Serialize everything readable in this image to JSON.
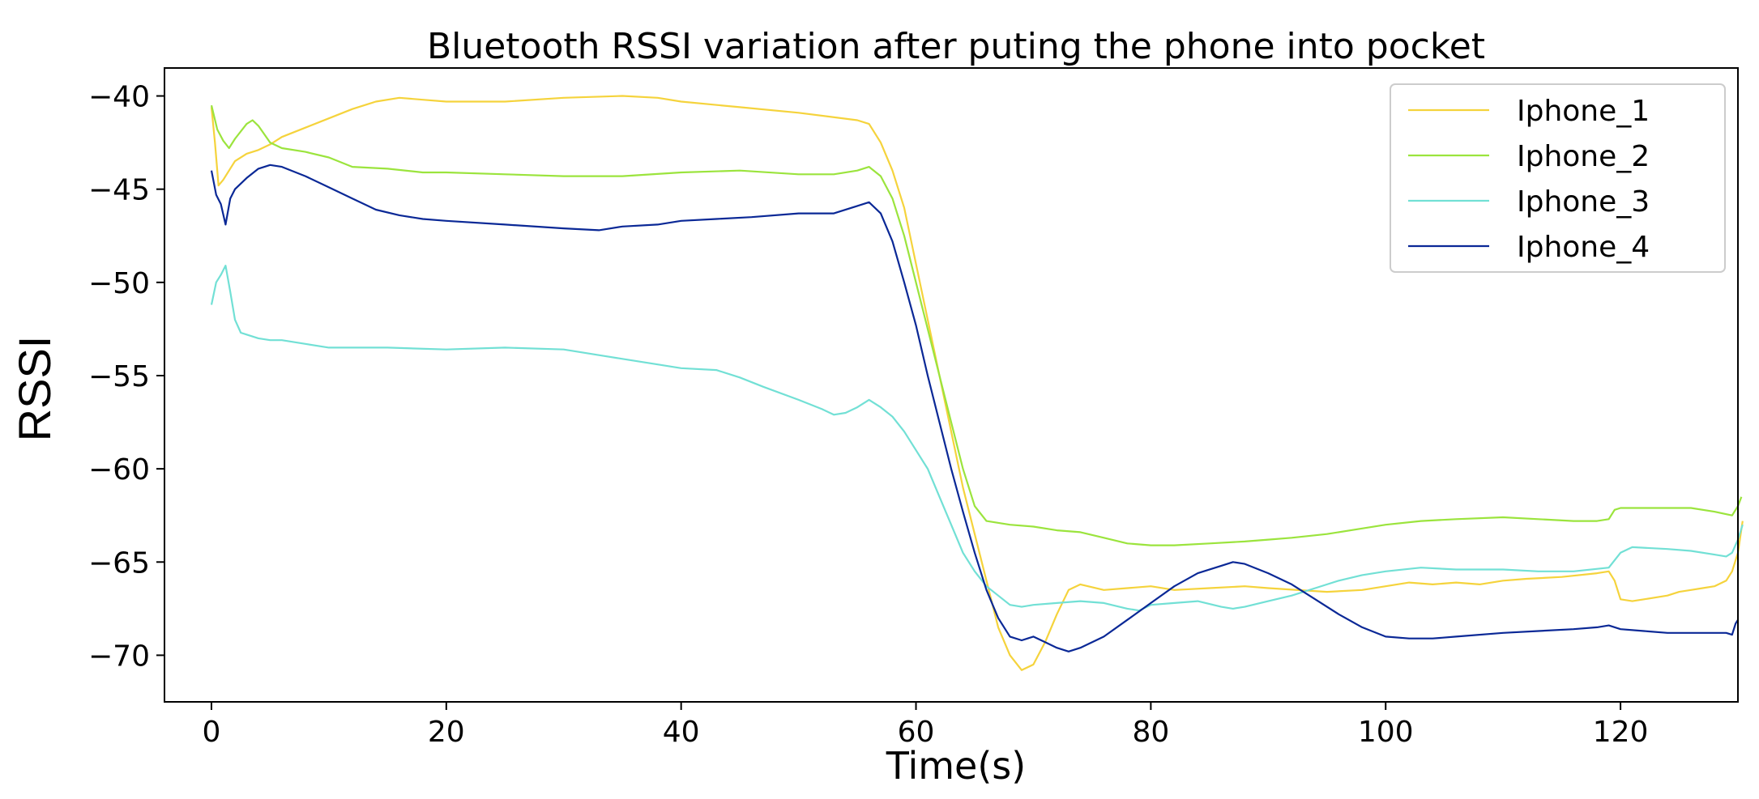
{
  "chart_data": {
    "type": "line",
    "title": "Bluetooth RSSI variation after puting the phone into pocket",
    "xlabel": "Time(s)",
    "ylabel": "RSSI",
    "xlim": [
      -4,
      130
    ],
    "ylim": [
      -72.5,
      -38.5
    ],
    "xticks": [
      0,
      20,
      40,
      60,
      80,
      100,
      120
    ],
    "yticks": [
      -40,
      -45,
      -50,
      -55,
      -60,
      -65,
      -70
    ],
    "xtick_labels": [
      "0",
      "20",
      "40",
      "60",
      "80",
      "100",
      "120"
    ],
    "ytick_labels": [
      "−40",
      "−45",
      "−50",
      "−55",
      "−60",
      "−65",
      "−70"
    ],
    "grid": false,
    "legend_position": "top-right",
    "series": [
      {
        "name": "Iphone_1",
        "color": "#f5d33c",
        "points": [
          [
            0,
            -40.6
          ],
          [
            0.3,
            -42.5
          ],
          [
            0.6,
            -44.8
          ],
          [
            1,
            -44.5
          ],
          [
            1.5,
            -44
          ],
          [
            2,
            -43.5
          ],
          [
            3,
            -43.1
          ],
          [
            4,
            -42.9
          ],
          [
            5,
            -42.6
          ],
          [
            6,
            -42.2
          ],
          [
            8,
            -41.7
          ],
          [
            10,
            -41.2
          ],
          [
            12,
            -40.7
          ],
          [
            14,
            -40.3
          ],
          [
            16,
            -40.1
          ],
          [
            18,
            -40.2
          ],
          [
            20,
            -40.3
          ],
          [
            25,
            -40.3
          ],
          [
            30,
            -40.1
          ],
          [
            35,
            -40
          ],
          [
            38,
            -40.1
          ],
          [
            40,
            -40.3
          ],
          [
            45,
            -40.6
          ],
          [
            50,
            -40.9
          ],
          [
            55,
            -41.3
          ],
          [
            56,
            -41.5
          ],
          [
            57,
            -42.5
          ],
          [
            58,
            -44
          ],
          [
            59,
            -46
          ],
          [
            60,
            -49
          ],
          [
            61,
            -52
          ],
          [
            62,
            -55
          ],
          [
            63,
            -58
          ],
          [
            64,
            -61
          ],
          [
            65,
            -63.5
          ],
          [
            66,
            -66
          ],
          [
            67,
            -68.5
          ],
          [
            68,
            -70
          ],
          [
            69,
            -70.8
          ],
          [
            70,
            -70.5
          ],
          [
            71,
            -69.3
          ],
          [
            72,
            -67.8
          ],
          [
            73,
            -66.5
          ],
          [
            74,
            -66.2
          ],
          [
            76,
            -66.5
          ],
          [
            78,
            -66.4
          ],
          [
            80,
            -66.3
          ],
          [
            82,
            -66.5
          ],
          [
            85,
            -66.4
          ],
          [
            88,
            -66.3
          ],
          [
            90,
            -66.4
          ],
          [
            95,
            -66.6
          ],
          [
            98,
            -66.5
          ],
          [
            100,
            -66.3
          ],
          [
            102,
            -66.1
          ],
          [
            104,
            -66.2
          ],
          [
            106,
            -66.1
          ],
          [
            108,
            -66.2
          ],
          [
            110,
            -66
          ],
          [
            112,
            -65.9
          ],
          [
            115,
            -65.8
          ],
          [
            118,
            -65.6
          ],
          [
            119,
            -65.5
          ],
          [
            119.5,
            -66
          ],
          [
            120,
            -67
          ],
          [
            121,
            -67.1
          ],
          [
            122,
            -67
          ],
          [
            124,
            -66.8
          ],
          [
            125,
            -66.6
          ],
          [
            126,
            -66.5
          ],
          [
            127,
            -66.4
          ],
          [
            128,
            -66.3
          ],
          [
            129,
            -66
          ],
          [
            129.5,
            -65.5
          ],
          [
            130,
            -64.5
          ],
          [
            130.4,
            -62.8
          ]
        ]
      },
      {
        "name": "Iphone_2",
        "color": "#9be43d",
        "points": [
          [
            0,
            -40.5
          ],
          [
            0.5,
            -41.8
          ],
          [
            1,
            -42.4
          ],
          [
            1.5,
            -42.8
          ],
          [
            2,
            -42.3
          ],
          [
            3,
            -41.5
          ],
          [
            3.5,
            -41.3
          ],
          [
            4,
            -41.6
          ],
          [
            5,
            -42.5
          ],
          [
            6,
            -42.8
          ],
          [
            8,
            -43
          ],
          [
            10,
            -43.3
          ],
          [
            12,
            -43.8
          ],
          [
            15,
            -43.9
          ],
          [
            18,
            -44.1
          ],
          [
            20,
            -44.1
          ],
          [
            25,
            -44.2
          ],
          [
            30,
            -44.3
          ],
          [
            35,
            -44.3
          ],
          [
            40,
            -44.1
          ],
          [
            45,
            -44
          ],
          [
            50,
            -44.2
          ],
          [
            53,
            -44.2
          ],
          [
            55,
            -44
          ],
          [
            56,
            -43.8
          ],
          [
            57,
            -44.3
          ],
          [
            58,
            -45.5
          ],
          [
            59,
            -47.5
          ],
          [
            60,
            -50
          ],
          [
            61,
            -52.5
          ],
          [
            62,
            -55
          ],
          [
            63,
            -57.5
          ],
          [
            64,
            -60
          ],
          [
            65,
            -62
          ],
          [
            66,
            -62.8
          ],
          [
            68,
            -63
          ],
          [
            70,
            -63.1
          ],
          [
            72,
            -63.3
          ],
          [
            74,
            -63.4
          ],
          [
            76,
            -63.7
          ],
          [
            78,
            -64
          ],
          [
            80,
            -64.1
          ],
          [
            82,
            -64.1
          ],
          [
            85,
            -64
          ],
          [
            88,
            -63.9
          ],
          [
            90,
            -63.8
          ],
          [
            92,
            -63.7
          ],
          [
            95,
            -63.5
          ],
          [
            98,
            -63.2
          ],
          [
            100,
            -63
          ],
          [
            103,
            -62.8
          ],
          [
            106,
            -62.7
          ],
          [
            110,
            -62.6
          ],
          [
            113,
            -62.7
          ],
          [
            116,
            -62.8
          ],
          [
            118,
            -62.8
          ],
          [
            119,
            -62.7
          ],
          [
            119.5,
            -62.2
          ],
          [
            120,
            -62.1
          ],
          [
            123,
            -62.1
          ],
          [
            126,
            -62.1
          ],
          [
            128,
            -62.3
          ],
          [
            129.5,
            -62.5
          ],
          [
            130,
            -62
          ],
          [
            130.3,
            -61.5
          ]
        ]
      },
      {
        "name": "Iphone_3",
        "color": "#72e0d5",
        "points": [
          [
            0,
            -51.2
          ],
          [
            0.4,
            -50
          ],
          [
            0.8,
            -49.6
          ],
          [
            1.2,
            -49.1
          ],
          [
            1.6,
            -50.5
          ],
          [
            2,
            -52
          ],
          [
            2.5,
            -52.7
          ],
          [
            3,
            -52.8
          ],
          [
            4,
            -53
          ],
          [
            5,
            -53.1
          ],
          [
            6,
            -53.1
          ],
          [
            8,
            -53.3
          ],
          [
            10,
            -53.5
          ],
          [
            12,
            -53.5
          ],
          [
            15,
            -53.5
          ],
          [
            20,
            -53.6
          ],
          [
            25,
            -53.5
          ],
          [
            30,
            -53.6
          ],
          [
            33,
            -53.9
          ],
          [
            35,
            -54.1
          ],
          [
            38,
            -54.4
          ],
          [
            40,
            -54.6
          ],
          [
            43,
            -54.7
          ],
          [
            45,
            -55.1
          ],
          [
            47,
            -55.6
          ],
          [
            50,
            -56.3
          ],
          [
            52,
            -56.8
          ],
          [
            53,
            -57.1
          ],
          [
            54,
            -57
          ],
          [
            55,
            -56.7
          ],
          [
            56,
            -56.3
          ],
          [
            57,
            -56.7
          ],
          [
            58,
            -57.2
          ],
          [
            59,
            -58
          ],
          [
            60,
            -59
          ],
          [
            61,
            -60
          ],
          [
            62,
            -61.5
          ],
          [
            63,
            -63
          ],
          [
            64,
            -64.5
          ],
          [
            65,
            -65.5
          ],
          [
            66,
            -66.3
          ],
          [
            67,
            -66.8
          ],
          [
            68,
            -67.3
          ],
          [
            69,
            -67.4
          ],
          [
            70,
            -67.3
          ],
          [
            72,
            -67.2
          ],
          [
            74,
            -67.1
          ],
          [
            76,
            -67.2
          ],
          [
            78,
            -67.5
          ],
          [
            79,
            -67.6
          ],
          [
            80,
            -67.3
          ],
          [
            82,
            -67.2
          ],
          [
            84,
            -67.1
          ],
          [
            86,
            -67.4
          ],
          [
            87,
            -67.5
          ],
          [
            88,
            -67.4
          ],
          [
            90,
            -67.1
          ],
          [
            92,
            -66.8
          ],
          [
            94,
            -66.4
          ],
          [
            96,
            -66
          ],
          [
            98,
            -65.7
          ],
          [
            100,
            -65.5
          ],
          [
            103,
            -65.3
          ],
          [
            106,
            -65.4
          ],
          [
            110,
            -65.4
          ],
          [
            113,
            -65.5
          ],
          [
            116,
            -65.5
          ],
          [
            119,
            -65.3
          ],
          [
            120,
            -64.5
          ],
          [
            121,
            -64.2
          ],
          [
            124,
            -64.3
          ],
          [
            126,
            -64.4
          ],
          [
            128,
            -64.6
          ],
          [
            129,
            -64.7
          ],
          [
            129.5,
            -64.5
          ],
          [
            130,
            -63.8
          ],
          [
            130.4,
            -63
          ]
        ]
      },
      {
        "name": "Iphone_4",
        "color": "#0a2896",
        "points": [
          [
            0,
            -44
          ],
          [
            0.4,
            -45.3
          ],
          [
            0.8,
            -45.8
          ],
          [
            1.2,
            -46.9
          ],
          [
            1.6,
            -45.5
          ],
          [
            2,
            -45
          ],
          [
            3,
            -44.4
          ],
          [
            4,
            -43.9
          ],
          [
            5,
            -43.7
          ],
          [
            6,
            -43.8
          ],
          [
            8,
            -44.3
          ],
          [
            10,
            -44.9
          ],
          [
            12,
            -45.5
          ],
          [
            14,
            -46.1
          ],
          [
            16,
            -46.4
          ],
          [
            18,
            -46.6
          ],
          [
            20,
            -46.7
          ],
          [
            25,
            -46.9
          ],
          [
            30,
            -47.1
          ],
          [
            33,
            -47.2
          ],
          [
            35,
            -47
          ],
          [
            38,
            -46.9
          ],
          [
            40,
            -46.7
          ],
          [
            43,
            -46.6
          ],
          [
            46,
            -46.5
          ],
          [
            50,
            -46.3
          ],
          [
            53,
            -46.3
          ],
          [
            55,
            -45.9
          ],
          [
            56,
            -45.7
          ],
          [
            57,
            -46.3
          ],
          [
            58,
            -47.8
          ],
          [
            59,
            -50
          ],
          [
            60,
            -52.3
          ],
          [
            61,
            -55
          ],
          [
            62,
            -57.5
          ],
          [
            63,
            -60
          ],
          [
            64,
            -62.3
          ],
          [
            65,
            -64.5
          ],
          [
            66,
            -66.5
          ],
          [
            67,
            -68
          ],
          [
            68,
            -69
          ],
          [
            69,
            -69.2
          ],
          [
            70,
            -69
          ],
          [
            71,
            -69.3
          ],
          [
            72,
            -69.6
          ],
          [
            73,
            -69.8
          ],
          [
            74,
            -69.6
          ],
          [
            76,
            -69
          ],
          [
            78,
            -68.1
          ],
          [
            80,
            -67.2
          ],
          [
            82,
            -66.3
          ],
          [
            84,
            -65.6
          ],
          [
            86,
            -65.2
          ],
          [
            87,
            -65
          ],
          [
            88,
            -65.1
          ],
          [
            90,
            -65.6
          ],
          [
            92,
            -66.2
          ],
          [
            94,
            -67
          ],
          [
            96,
            -67.8
          ],
          [
            98,
            -68.5
          ],
          [
            100,
            -69
          ],
          [
            102,
            -69.1
          ],
          [
            104,
            -69.1
          ],
          [
            106,
            -69
          ],
          [
            110,
            -68.8
          ],
          [
            113,
            -68.7
          ],
          [
            116,
            -68.6
          ],
          [
            118,
            -68.5
          ],
          [
            119,
            -68.4
          ],
          [
            120,
            -68.6
          ],
          [
            122,
            -68.7
          ],
          [
            124,
            -68.8
          ],
          [
            126,
            -68.8
          ],
          [
            128,
            -68.8
          ],
          [
            129,
            -68.8
          ],
          [
            129.5,
            -68.9
          ],
          [
            129.8,
            -68.3
          ],
          [
            130,
            -68.1
          ]
        ]
      }
    ]
  }
}
